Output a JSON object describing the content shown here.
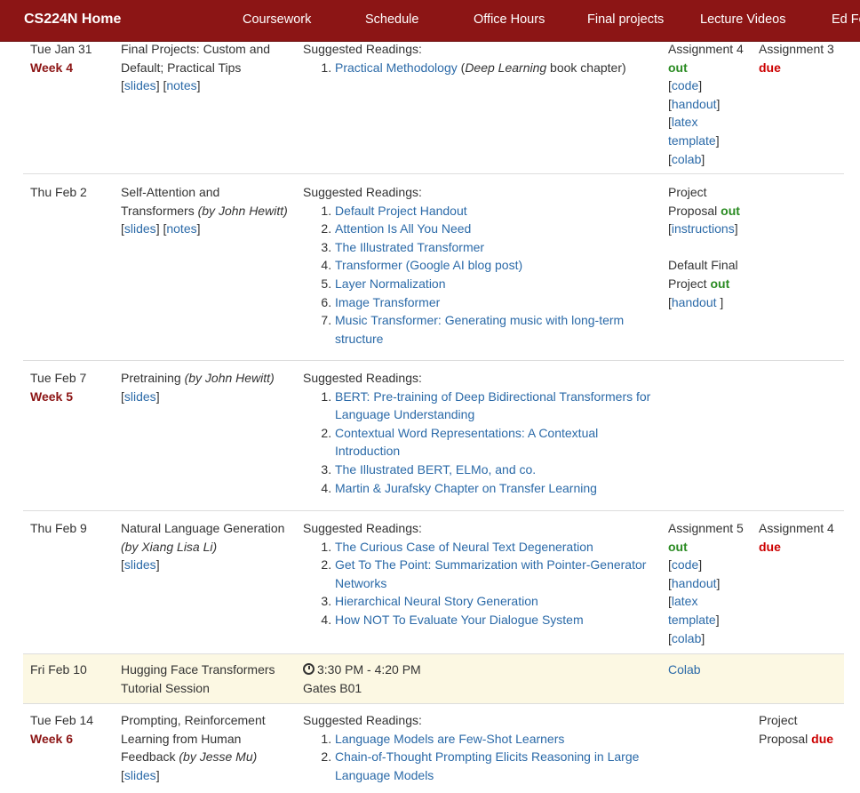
{
  "nav": {
    "brand": "CS224N Home",
    "links": [
      "Coursework",
      "Schedule",
      "Office Hours",
      "Final projects",
      "Lecture Videos",
      "Ed Fo"
    ]
  },
  "common": {
    "suggested": "Suggested Readings:",
    "slides": "slides",
    "notes": "notes",
    "code": "code",
    "handout": "handout",
    "latex_template_1": "latex",
    "latex_template_2": "template",
    "colab": "colab",
    "out": "out",
    "due": "due"
  },
  "rows": [
    {
      "date": "Tue Jan 31",
      "week": "Week 4",
      "topic": "Final Projects: Custom and Default; Practical Tips",
      "readings": [
        {
          "link": "Practical Methodology",
          "rest_pre": " (",
          "em": "Deep Learning",
          "rest_post": " book chapter)"
        }
      ],
      "event_title": "Assignment 4",
      "due_title": "Assignment 3"
    },
    {
      "date": "Thu Feb 2",
      "topic": "Self-Attention and Transformers",
      "by": "(by John Hewitt)",
      "readings": [
        "Default Project Handout",
        "Attention Is All You Need",
        "The Illustrated Transformer",
        "Transformer (Google AI blog post)",
        "Layer Normalization",
        "Image Transformer",
        "Music Transformer: Generating music with long-term structure"
      ],
      "event1_a": "Project",
      "event1_b": "Proposal",
      "event1_link": "instructions",
      "event2_a": "Default Final",
      "event2_b": "Project",
      "event2_link": "handout "
    },
    {
      "date": "Tue Feb 7",
      "week": "Week 5",
      "topic": "Pretraining",
      "by": "(by John Hewitt)",
      "readings": [
        "BERT: Pre-training of Deep Bidirectional Transformers for Language Understanding",
        "Contextual Word Representations: A Contextual Introduction",
        "The Illustrated BERT, ELMo, and co.",
        "Martin & Jurafsky Chapter on Transfer Learning"
      ]
    },
    {
      "date": "Thu Feb 9",
      "topic": "Natural Language Generation",
      "by": "(by Xiang Lisa Li)",
      "readings": [
        "The Curious Case of Neural Text Degeneration",
        "Get To The Point: Summarization with Pointer-Generator Networks",
        "Hierarchical Neural Story Generation",
        "How NOT To Evaluate Your Dialogue System"
      ],
      "event_title": "Assignment 5",
      "due_title": "Assignment 4"
    },
    {
      "date": "Fri Feb 10",
      "topic": "Hugging Face Transformers Tutorial Session",
      "time": "3:30 PM - 4:20 PM",
      "location": "Gates B01",
      "event_link": "Colab"
    },
    {
      "date": "Tue Feb 14",
      "week": "Week 6",
      "topic": "Prompting, Reinforcement Learning from Human Feedback",
      "by": "(by Jesse Mu)",
      "readings": [
        "Language Models are Few-Shot Learners",
        "Chain-of-Thought Prompting Elicits Reasoning in Large Language Models"
      ],
      "due_a": "Project",
      "due_b": "Proposal"
    }
  ]
}
